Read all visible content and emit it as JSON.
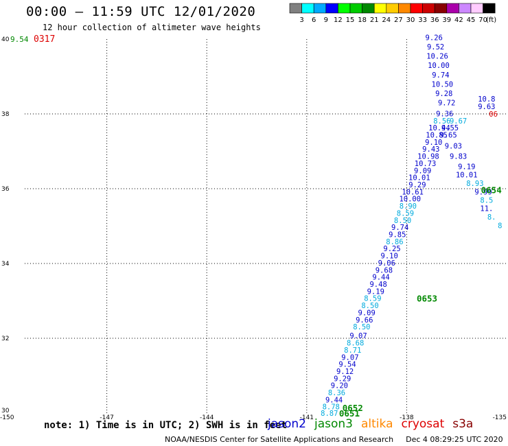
{
  "header": {
    "title": "00:00 – 11:59 UTC 12/01/2020",
    "subtitle": "12 hour collection of altimeter wave heights"
  },
  "legend": {
    "unit": "(ft)",
    "bins": [
      {
        "label": "3",
        "color": "#808080"
      },
      {
        "label": "6",
        "color": "#00ffff"
      },
      {
        "label": "9",
        "color": "#00aaff"
      },
      {
        "label": "12",
        "color": "#0000ff"
      },
      {
        "label": "15",
        "color": "#00ff00"
      },
      {
        "label": "18",
        "color": "#00cc00"
      },
      {
        "label": "21",
        "color": "#008800"
      },
      {
        "label": "24",
        "color": "#ffff00"
      },
      {
        "label": "27",
        "color": "#ffcc00"
      },
      {
        "label": "30",
        "color": "#ff8800"
      },
      {
        "label": "33",
        "color": "#ff0000"
      },
      {
        "label": "36",
        "color": "#cc0000"
      },
      {
        "label": "39",
        "color": "#880000"
      },
      {
        "label": "42",
        "color": "#aa00aa"
      },
      {
        "label": "45",
        "color": "#cc88ff"
      },
      {
        "label": "70",
        "color": "#ffccff"
      },
      {
        "label": "",
        "color": "#000000"
      }
    ]
  },
  "map": {
    "lon_ticks": [
      "-150",
      "-147",
      "-144",
      "-141",
      "-138",
      "-135"
    ],
    "lat_ticks": [
      "30",
      "32",
      "34",
      "36",
      "38",
      "40"
    ],
    "lon_range": [
      -150,
      -135
    ],
    "lat_range": [
      30,
      40
    ],
    "colors": {
      "jason2": "#0000cc",
      "jason3": "#008800",
      "altika": "#ff8800",
      "cryosat": "#dd0000",
      "s3a": "#880000",
      "light": "#00aadd",
      "red": "#dd0000"
    },
    "corner_value": {
      "text": "9.54",
      "color": "#008800"
    },
    "corner_time": {
      "text": "0317",
      "color": "#dd0000"
    },
    "time_labels": [
      {
        "text": "0651",
        "lon": -140.03,
        "lat": 30.0,
        "color": "#008800"
      },
      {
        "text": "0652",
        "lon": -139.93,
        "lat": 30.15,
        "color": "#008800"
      },
      {
        "text": "0653",
        "lon": -137.7,
        "lat": 33.07,
        "color": "#008800"
      },
      {
        "text": "0654",
        "lon": -135.77,
        "lat": 35.97,
        "color": "#008800"
      }
    ],
    "swh_main": [
      {
        "text": "8.87",
        "lon": -140.32,
        "lat": 30.0,
        "color": "#00aadd"
      },
      {
        "text": "8.78",
        "lon": -140.27,
        "lat": 30.17,
        "color": "#00aadd"
      },
      {
        "text": "9.44",
        "lon": -140.18,
        "lat": 30.36,
        "color": "#0000cc"
      },
      {
        "text": "8.36",
        "lon": -140.1,
        "lat": 30.55,
        "color": "#00aadd"
      },
      {
        "text": "9.20",
        "lon": -140.02,
        "lat": 30.74,
        "color": "#0000cc"
      },
      {
        "text": "9.29",
        "lon": -139.93,
        "lat": 30.93,
        "color": "#0000cc"
      },
      {
        "text": "9.12",
        "lon": -139.85,
        "lat": 31.12,
        "color": "#0000cc"
      },
      {
        "text": "9.54",
        "lon": -139.78,
        "lat": 31.31,
        "color": "#0000cc"
      },
      {
        "text": "9.07",
        "lon": -139.7,
        "lat": 31.5,
        "color": "#0000cc"
      },
      {
        "text": "8.71",
        "lon": -139.62,
        "lat": 31.69,
        "color": "#00aadd"
      },
      {
        "text": "8.68",
        "lon": -139.54,
        "lat": 31.88,
        "color": "#00aadd"
      },
      {
        "text": "9.07",
        "lon": -139.45,
        "lat": 32.07,
        "color": "#0000cc"
      },
      {
        "text": "8.50",
        "lon": -139.35,
        "lat": 32.31,
        "color": "#00aadd"
      },
      {
        "text": "9.66",
        "lon": -139.27,
        "lat": 32.5,
        "color": "#0000cc"
      },
      {
        "text": "9.09",
        "lon": -139.2,
        "lat": 32.69,
        "color": "#0000cc"
      },
      {
        "text": "8.50",
        "lon": -139.1,
        "lat": 32.88,
        "color": "#00aadd"
      },
      {
        "text": "8.59",
        "lon": -139.02,
        "lat": 33.07,
        "color": "#00aadd"
      },
      {
        "text": "9.19",
        "lon": -138.93,
        "lat": 33.26,
        "color": "#0000cc"
      },
      {
        "text": "9.48",
        "lon": -138.85,
        "lat": 33.45,
        "color": "#0000cc"
      },
      {
        "text": "9.44",
        "lon": -138.77,
        "lat": 33.64,
        "color": "#0000cc"
      },
      {
        "text": "9.68",
        "lon": -138.68,
        "lat": 33.83,
        "color": "#0000cc"
      },
      {
        "text": "9.06",
        "lon": -138.6,
        "lat": 34.02,
        "color": "#0000cc"
      },
      {
        "text": "9.10",
        "lon": -138.52,
        "lat": 34.21,
        "color": "#0000cc"
      },
      {
        "text": "9.25",
        "lon": -138.44,
        "lat": 34.4,
        "color": "#0000cc"
      },
      {
        "text": "8.86",
        "lon": -138.36,
        "lat": 34.59,
        "color": "#00aadd"
      },
      {
        "text": "9.85",
        "lon": -138.28,
        "lat": 34.78,
        "color": "#0000cc"
      },
      {
        "text": "9.74",
        "lon": -138.2,
        "lat": 34.97,
        "color": "#0000cc"
      },
      {
        "text": "8.50",
        "lon": -138.12,
        "lat": 35.16,
        "color": "#00aadd"
      },
      {
        "text": "8.59",
        "lon": -138.04,
        "lat": 35.35,
        "color": "#00aadd"
      },
      {
        "text": "8.90",
        "lon": -137.96,
        "lat": 35.54,
        "color": "#00aadd"
      },
      {
        "text": "10.00",
        "lon": -137.9,
        "lat": 35.73,
        "color": "#0000cc"
      },
      {
        "text": "10.61",
        "lon": -137.82,
        "lat": 35.92,
        "color": "#0000cc"
      },
      {
        "text": "9.29",
        "lon": -137.68,
        "lat": 36.11,
        "color": "#0000cc"
      },
      {
        "text": "10.01",
        "lon": -137.62,
        "lat": 36.3,
        "color": "#0000cc"
      },
      {
        "text": "9.09",
        "lon": -137.52,
        "lat": 36.49,
        "color": "#0000cc"
      },
      {
        "text": "10.73",
        "lon": -137.44,
        "lat": 36.68,
        "color": "#0000cc"
      },
      {
        "text": "10.98",
        "lon": -137.35,
        "lat": 36.87,
        "color": "#0000cc"
      },
      {
        "text": "9.43",
        "lon": -137.27,
        "lat": 37.06,
        "color": "#0000cc"
      },
      {
        "text": "9.10",
        "lon": -137.19,
        "lat": 37.25,
        "color": "#0000cc"
      },
      {
        "text": "10.85",
        "lon": -137.1,
        "lat": 37.44,
        "color": "#0000cc"
      },
      {
        "text": "10.44",
        "lon": -137.02,
        "lat": 37.63,
        "color": "#0000cc"
      },
      {
        "text": "8.56",
        "lon": -136.94,
        "lat": 37.82,
        "color": "#00aadd"
      },
      {
        "text": "9.36",
        "lon": -136.86,
        "lat": 38.01,
        "color": "#0000cc"
      },
      {
        "text": "9.72",
        "lon": -136.8,
        "lat": 38.3,
        "color": "#0000cc"
      },
      {
        "text": "9.28",
        "lon": -136.88,
        "lat": 38.55,
        "color": "#0000cc"
      },
      {
        "text": "10.50",
        "lon": -136.93,
        "lat": 38.8,
        "color": "#0000cc"
      },
      {
        "text": "9.74",
        "lon": -136.98,
        "lat": 39.05,
        "color": "#0000cc"
      },
      {
        "text": "10.00",
        "lon": -137.04,
        "lat": 39.3,
        "color": "#0000cc"
      },
      {
        "text": "10.26",
        "lon": -137.08,
        "lat": 39.55,
        "color": "#0000cc"
      },
      {
        "text": "9.52",
        "lon": -137.13,
        "lat": 39.8,
        "color": "#0000cc"
      },
      {
        "text": "9.26",
        "lon": -137.18,
        "lat": 40.05,
        "color": "#0000cc"
      }
    ],
    "swh_edge": [
      {
        "text": "10.8",
        "lon": -135.6,
        "lat": 38.4,
        "color": "#0000cc"
      },
      {
        "text": "9.63",
        "lon": -135.6,
        "lat": 38.2,
        "color": "#0000cc"
      },
      {
        "text": "06",
        "lon": -135.4,
        "lat": 38.0,
        "color": "#dd0000"
      },
      {
        "text": "9.67",
        "lon": -136.45,
        "lat": 37.82,
        "color": "#00aadd"
      },
      {
        "text": "9.55",
        "lon": -136.7,
        "lat": 37.63,
        "color": "#0000cc"
      },
      {
        "text": "9.65",
        "lon": -136.75,
        "lat": 37.44,
        "color": "#0000cc"
      },
      {
        "text": "9.03",
        "lon": -136.6,
        "lat": 37.15,
        "color": "#0000cc"
      },
      {
        "text": "9.83",
        "lon": -136.45,
        "lat": 36.87,
        "color": "#0000cc"
      },
      {
        "text": "9.19",
        "lon": -136.2,
        "lat": 36.6,
        "color": "#0000cc"
      },
      {
        "text": "10.01",
        "lon": -136.2,
        "lat": 36.38,
        "color": "#0000cc"
      },
      {
        "text": "8.93",
        "lon": -135.95,
        "lat": 36.15,
        "color": "#00aadd"
      },
      {
        "text": "9.99",
        "lon": -135.7,
        "lat": 35.92,
        "color": "#0000cc"
      },
      {
        "text": "8.5",
        "lon": -135.6,
        "lat": 35.7,
        "color": "#00aadd"
      },
      {
        "text": "11.",
        "lon": -135.6,
        "lat": 35.48,
        "color": "#0000cc"
      },
      {
        "text": "8.",
        "lon": -135.45,
        "lat": 35.25,
        "color": "#00aadd"
      },
      {
        "text": "8",
        "lon": -135.2,
        "lat": 35.02,
        "color": "#00aadd"
      }
    ]
  },
  "footer": {
    "note": "note: 1) Time is in UTC; 2) SWH is in feet",
    "satellites": [
      {
        "name": "jason2",
        "color": "#0000cc"
      },
      {
        "name": "jason3",
        "color": "#008800"
      },
      {
        "name": "altika",
        "color": "#ff8800"
      },
      {
        "name": "cryosat",
        "color": "#dd0000"
      },
      {
        "name": "s3a",
        "color": "#880000"
      }
    ],
    "credit": "NOAA/NESDIS Center for Satellite Applications and Research",
    "timestamp": "Dec  4 08:29:25 UTC 2020"
  }
}
